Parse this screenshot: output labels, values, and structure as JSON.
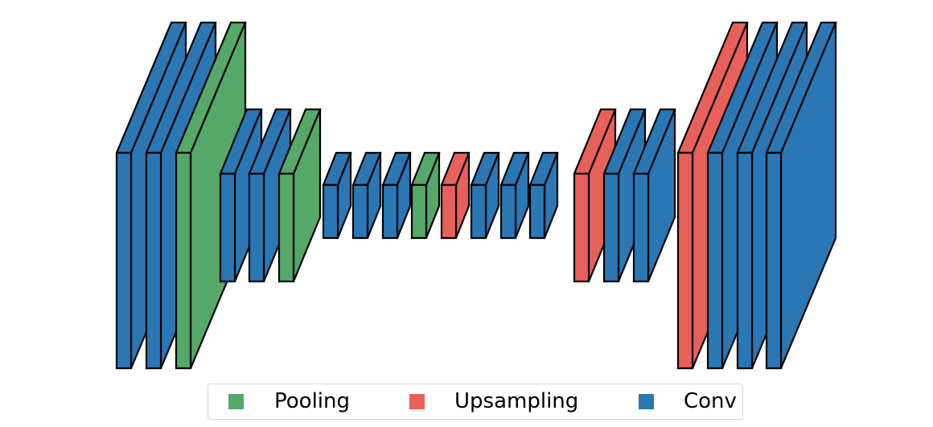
{
  "colors": {
    "pooling": "#55a868",
    "upsampling": "#e8605a",
    "conv": "#2a77b4",
    "edge": "#000000"
  },
  "layers": [
    {
      "type": "conv"
    },
    {
      "type": "conv"
    },
    {
      "type": "pooling"
    },
    {
      "type": "conv"
    },
    {
      "type": "conv"
    },
    {
      "type": "pooling"
    },
    {
      "type": "conv"
    },
    {
      "type": "conv"
    },
    {
      "type": "conv"
    },
    {
      "type": "pooling"
    },
    {
      "type": "upsampling"
    },
    {
      "type": "conv"
    },
    {
      "type": "conv"
    },
    {
      "type": "conv"
    },
    {
      "type": "upsampling"
    },
    {
      "type": "conv"
    },
    {
      "type": "conv"
    },
    {
      "type": "upsampling"
    },
    {
      "type": "conv"
    },
    {
      "type": "conv"
    },
    {
      "type": "conv"
    }
  ],
  "legend": {
    "items": [
      {
        "key": "pooling",
        "label": "Pooling"
      },
      {
        "key": "upsampling",
        "label": "Upsampling"
      },
      {
        "key": "conv",
        "label": "Conv"
      }
    ]
  }
}
